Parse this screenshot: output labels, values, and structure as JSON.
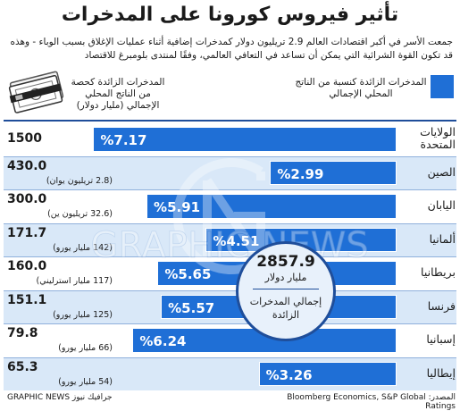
{
  "title": "تأثير فيروس كورونا على المدخرات",
  "subtitle": "جمعت الأسر في أكبر اقتصادات العالم 2.9 تريليون دولار كمدخرات إضافية أثناء عمليات الإغلاق بسبب الوباء - وهذه قد تكون القوة الشرائية التي يمكن أن تساعد في التعافي العالمي، وفقًا لمنتدى بلومبرغ للاقتصاد",
  "legend": {
    "pct_label": "المدخرات الزائدة كنسبة من الناتج المحلي الإجمالي",
    "val_label": "المدخرات الزائدة كحصة من الناتج المحلي الإجمالي (مليار دولار)",
    "color": "#1f6fd6"
  },
  "icon": "money-stack-icon",
  "center_note": {
    "total": "2857.9",
    "unit": "مليار دولار",
    "label": "إجمالي المدخرات الزائدة"
  },
  "watermark": {
    "logo": "GN",
    "text": "GRAPHIC NEWS"
  },
  "footer": {
    "source": "المصدر: Bloomberg Economics, S&P Global Ratings",
    "brand": "جرافيك نيوز GRAPHIC NEWS"
  },
  "chart_data": {
    "type": "bar",
    "orientation": "horizontal",
    "categories": [
      "الولايات المتحدة",
      "الصين",
      "اليابان",
      "ألمانيا",
      "بريطانيا",
      "فرنسا",
      "إسبانيا",
      "إيطاليا"
    ],
    "values": [
      7.17,
      2.99,
      5.91,
      4.51,
      5.65,
      5.57,
      6.24,
      3.26
    ],
    "value_labels": [
      "%7.17",
      "%2.99",
      "%5.91",
      "%4.51",
      "%5.65",
      "%5.57",
      "%6.24",
      "%3.26"
    ],
    "usd_billions": [
      "1500",
      "430.0",
      "300.0",
      "171.7",
      "160.0",
      "151.1",
      "79.8",
      "65.3"
    ],
    "local_currency": [
      "",
      "(2.8 تريليون يوان)",
      "(32.6 تريليون ين)",
      "(142 مليار يورو)",
      "(117 مليار استرليني)",
      "(125 مليار يورو)",
      "(66 مليار يورو)",
      "(54 مليار يورو)"
    ],
    "xlim": [
      0,
      7.6
    ],
    "bar_direction": "right-to-left"
  }
}
